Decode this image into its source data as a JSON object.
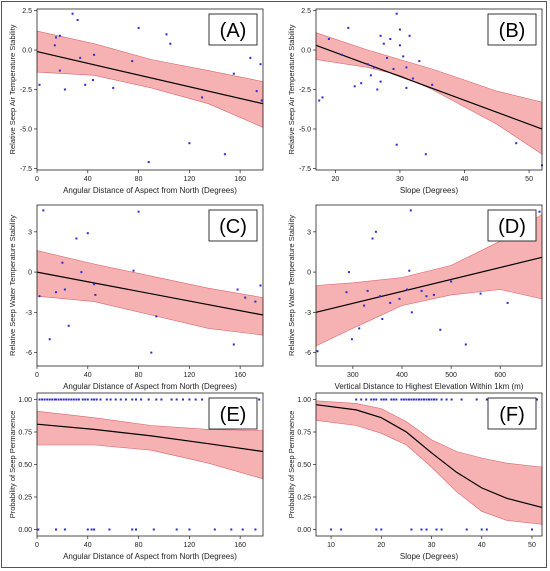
{
  "chart_data": [
    {
      "panel": "(A)",
      "type": "scatter",
      "xlabel": "Angular Distance of Aspect from North (Degrees)",
      "ylabel": "Relative Seep Air Temperature Stability",
      "xlim": [
        0,
        178
      ],
      "ylim": [
        -7.6,
        2.6
      ],
      "xticks": [
        0,
        40,
        80,
        120,
        160
      ],
      "yticks": [
        2.5,
        0.0,
        -2.5,
        -5.0,
        -7.5
      ],
      "ytick_labels": [
        "2.5",
        "0.0",
        "-2.5",
        "-5.0",
        "-7.5"
      ],
      "fit": {
        "x": [
          0,
          178
        ],
        "y": [
          -0.1,
          -3.4
        ]
      },
      "band": {
        "x": [
          0,
          45,
          90,
          135,
          178
        ],
        "upper": [
          1.2,
          0.4,
          -0.6,
          -1.3,
          -2.0
        ],
        "lower": [
          -1.4,
          -1.6,
          -2.4,
          -3.4,
          -4.9
        ]
      },
      "points": [
        [
          2,
          -2.2
        ],
        [
          14,
          0.3
        ],
        [
          15,
          0.8
        ],
        [
          18,
          0.9
        ],
        [
          18,
          -1.3
        ],
        [
          22,
          -2.5
        ],
        [
          28,
          2.3
        ],
        [
          32,
          1.9
        ],
        [
          34,
          -0.5
        ],
        [
          38,
          -2.2
        ],
        [
          44,
          -1.9
        ],
        [
          45,
          -0.3
        ],
        [
          60,
          -2.4
        ],
        [
          75,
          -0.7
        ],
        [
          80,
          1.4
        ],
        [
          88,
          -7.1
        ],
        [
          102,
          1.0
        ],
        [
          105,
          0.4
        ],
        [
          120,
          -5.9
        ],
        [
          130,
          -3.0
        ],
        [
          148,
          -6.6
        ],
        [
          155,
          -1.5
        ],
        [
          168,
          -0.5
        ],
        [
          173,
          -2.6
        ],
        [
          176,
          -0.9
        ],
        [
          177,
          -3.2
        ]
      ]
    },
    {
      "panel": "(B)",
      "type": "scatter",
      "xlabel": "Slope (Degrees)",
      "ylabel": "Relative Seep Air Temperature Stability",
      "xlim": [
        17,
        52
      ],
      "ylim": [
        -7.6,
        2.6
      ],
      "xticks": [
        20,
        30,
        40,
        50
      ],
      "yticks": [
        2.5,
        0.0,
        -2.5,
        -5.0,
        -7.5
      ],
      "ytick_labels": [
        "2.5",
        "0.0",
        "-2.5",
        "-5.0",
        "-7.5"
      ],
      "fit": {
        "x": [
          17,
          52
        ],
        "y": [
          0.3,
          -5.0
        ]
      },
      "band": {
        "x": [
          17,
          25,
          30,
          35,
          40,
          45,
          52
        ],
        "upper": [
          1.1,
          0.0,
          -0.6,
          -1.2,
          -1.9,
          -2.6,
          -3.3
        ],
        "lower": [
          -0.6,
          -1.1,
          -1.6,
          -2.5,
          -3.6,
          -4.7,
          -6.6
        ]
      },
      "points": [
        [
          17.5,
          -3.2
        ],
        [
          18,
          -3.0
        ],
        [
          19,
          0.7
        ],
        [
          21,
          -0.3
        ],
        [
          22,
          1.4
        ],
        [
          23,
          -2.3
        ],
        [
          24,
          -2.1
        ],
        [
          25,
          -0.9
        ],
        [
          25.5,
          -1.6
        ],
        [
          26,
          -1.1
        ],
        [
          26.5,
          -2.5
        ],
        [
          27,
          0.9
        ],
        [
          27,
          -2.0
        ],
        [
          27.5,
          0.4
        ],
        [
          28,
          -0.5
        ],
        [
          28.5,
          0.7
        ],
        [
          29,
          -1.2
        ],
        [
          29.5,
          -6.0
        ],
        [
          29.5,
          2.3
        ],
        [
          30,
          1.3
        ],
        [
          30,
          0.3
        ],
        [
          30.5,
          -0.4
        ],
        [
          31,
          -1.1
        ],
        [
          31,
          -2.4
        ],
        [
          31.5,
          0.9
        ],
        [
          32,
          -1.8
        ],
        [
          33,
          -0.7
        ],
        [
          34,
          -6.6
        ],
        [
          35,
          -2.2
        ],
        [
          48,
          -5.9
        ],
        [
          52,
          -7.3
        ]
      ]
    },
    {
      "panel": "(C)",
      "type": "scatter",
      "xlabel": "Angular Distance of Aspect from North (Degrees)",
      "ylabel": "Relative Seep Water Temperature Stability",
      "xlim": [
        0,
        178
      ],
      "ylim": [
        -7.0,
        5.0
      ],
      "xticks": [
        0,
        40,
        80,
        120,
        160
      ],
      "yticks": [
        3,
        0,
        -3,
        -6
      ],
      "ytick_labels": [
        "3",
        "0",
        "-3",
        "-6"
      ],
      "fit": {
        "x": [
          0,
          178
        ],
        "y": [
          0.0,
          -3.2
        ]
      },
      "band": {
        "x": [
          0,
          45,
          90,
          135,
          178
        ],
        "upper": [
          1.6,
          0.6,
          -0.3,
          -1.2,
          -1.9
        ],
        "lower": [
          -1.8,
          -2.2,
          -3.2,
          -4.2,
          -4.7
        ]
      },
      "points": [
        [
          2,
          -1.8
        ],
        [
          5,
          4.6
        ],
        [
          10,
          -5.0
        ],
        [
          15,
          -1.5
        ],
        [
          20,
          0.7
        ],
        [
          22,
          -1.3
        ],
        [
          25,
          -4.0
        ],
        [
          31,
          2.5
        ],
        [
          35,
          0.0
        ],
        [
          40,
          2.9
        ],
        [
          45,
          -0.9
        ],
        [
          46,
          -1.7
        ],
        [
          76,
          0.1
        ],
        [
          80,
          4.5
        ],
        [
          90,
          -6.0
        ],
        [
          94,
          -3.3
        ],
        [
          155,
          -5.4
        ],
        [
          158,
          -1.3
        ],
        [
          164,
          -1.9
        ],
        [
          172,
          -2.2
        ],
        [
          176,
          -1.0
        ]
      ]
    },
    {
      "panel": "(D)",
      "type": "scatter",
      "xlabel": "Vertical Distance to Highest Elevation Within 1km (m)",
      "ylabel": "Relative Seep Water Temperature Stability",
      "xlim": [
        225,
        685
      ],
      "ylim": [
        -7.0,
        5.0
      ],
      "xticks": [
        300,
        400,
        500,
        600
      ],
      "yticks": [
        3,
        0,
        -3,
        -6
      ],
      "ytick_labels": [
        "3",
        "0",
        "-3",
        "-6"
      ],
      "fit": {
        "x": [
          225,
          685
        ],
        "y": [
          -3.0,
          1.1
        ]
      },
      "band": {
        "x": [
          225,
          300,
          400,
          500,
          600,
          685
        ],
        "upper": [
          -1.0,
          -0.8,
          -0.4,
          0.5,
          2.3,
          4.3
        ],
        "lower": [
          -5.5,
          -4.2,
          -2.5,
          -1.7,
          -1.3,
          -2.0
        ]
      },
      "points": [
        [
          228,
          -5.9
        ],
        [
          287,
          -1.5
        ],
        [
          292,
          0.0
        ],
        [
          298,
          -5.0
        ],
        [
          313,
          -4.2
        ],
        [
          323,
          -2.5
        ],
        [
          330,
          -1.4
        ],
        [
          340,
          2.5
        ],
        [
          347,
          3.0
        ],
        [
          355,
          -1.8
        ],
        [
          360,
          -3.5
        ],
        [
          376,
          -2.3
        ],
        [
          395,
          -2.0
        ],
        [
          410,
          -1.3
        ],
        [
          415,
          0.1
        ],
        [
          418,
          4.6
        ],
        [
          420,
          -3.0
        ],
        [
          440,
          -1.4
        ],
        [
          450,
          -1.8
        ],
        [
          465,
          -1.7
        ],
        [
          478,
          -4.3
        ],
        [
          500,
          -0.7
        ],
        [
          530,
          -5.4
        ],
        [
          560,
          -1.6
        ],
        [
          615,
          -2.3
        ],
        [
          680,
          4.5
        ]
      ]
    },
    {
      "panel": "(E)",
      "type": "scatter",
      "xlabel": "Angular Distance of Aspect from North (Degrees)",
      "ylabel": "Probability of Seep Permanence",
      "xlim": [
        0,
        178
      ],
      "ylim": [
        -0.05,
        1.05
      ],
      "xticks": [
        0,
        40,
        80,
        120,
        160
      ],
      "yticks": [
        0,
        0.25,
        0.5,
        0.75,
        1
      ],
      "ytick_labels": [
        "0.00",
        "0.25",
        "0.50",
        "0.75",
        "1.00"
      ],
      "fit": {
        "x": [
          0,
          45,
          90,
          135,
          178
        ],
        "y": [
          0.81,
          0.77,
          0.72,
          0.66,
          0.6
        ]
      },
      "band": {
        "x": [
          0,
          45,
          90,
          135,
          178
        ],
        "upper": [
          0.91,
          0.86,
          0.8,
          0.77,
          0.76
        ],
        "lower": [
          0.65,
          0.65,
          0.61,
          0.51,
          0.39
        ]
      },
      "points_y1": [
        2,
        4,
        6,
        8,
        10,
        12,
        14,
        15,
        17,
        19,
        21,
        23,
        25,
        27,
        29,
        31,
        33,
        36,
        38,
        40,
        43,
        45,
        47,
        50,
        55,
        58,
        62,
        66,
        70,
        75,
        78,
        82,
        88,
        94,
        98,
        106,
        110,
        115,
        120,
        125,
        130,
        136,
        142,
        148,
        155,
        160,
        165,
        170,
        175
      ],
      "points_y0": [
        1,
        15,
        22,
        40,
        43,
        45,
        57,
        75,
        78,
        92,
        110,
        120,
        140,
        153,
        162,
        172
      ]
    },
    {
      "panel": "(F)",
      "type": "scatter",
      "xlabel": "Slope (Degrees)",
      "ylabel": "Probability of Seep Permanence",
      "xlim": [
        7,
        52
      ],
      "ylim": [
        -0.05,
        1.05
      ],
      "xticks": [
        10,
        20,
        30,
        40,
        50
      ],
      "yticks": [
        0,
        0.25,
        0.5,
        0.75,
        1
      ],
      "ytick_labels": [
        "0.00",
        "0.25",
        "0.50",
        "0.75",
        "1.00"
      ],
      "fit": {
        "x": [
          7,
          15,
          20,
          25,
          30,
          35,
          40,
          45,
          52
        ],
        "y": [
          0.96,
          0.92,
          0.86,
          0.75,
          0.59,
          0.44,
          0.32,
          0.24,
          0.17
        ]
      },
      "band": {
        "x": [
          7,
          15,
          20,
          25,
          30,
          35,
          40,
          45,
          52
        ],
        "upper": [
          0.99,
          0.97,
          0.93,
          0.83,
          0.69,
          0.6,
          0.55,
          0.51,
          0.48
        ],
        "lower": [
          0.84,
          0.8,
          0.74,
          0.65,
          0.48,
          0.29,
          0.14,
          0.07,
          0.04
        ]
      },
      "points_y1": [
        15,
        16,
        17,
        18,
        18.5,
        19,
        20,
        20.5,
        21,
        22,
        22.5,
        23,
        24,
        24.5,
        25,
        25.5,
        26,
        26.5,
        27,
        27.5,
        28,
        28.5,
        29,
        29.5,
        30,
        30.5,
        31,
        32,
        33,
        34,
        36,
        39,
        41,
        51
      ],
      "points_y0": [
        10,
        12,
        19,
        20,
        26,
        28,
        29,
        31,
        32,
        37,
        40,
        41,
        50
      ]
    }
  ]
}
